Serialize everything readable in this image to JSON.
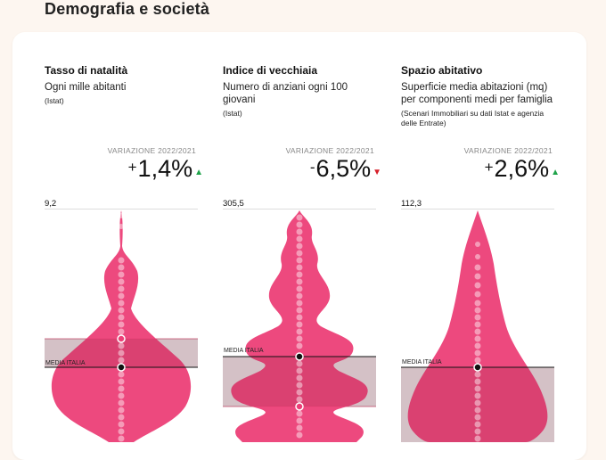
{
  "section_title": "Demografia e società",
  "colors": {
    "violin": "#ec3f77",
    "band": "#e4e4e4",
    "up_arrow": "#1fa34a",
    "down_arrow": "#d7202a"
  },
  "panels": [
    {
      "title": "Tasso di natalità",
      "subtitle": "Ogni mille abitanti",
      "source": "(Istat)",
      "variation_label": "VARIAZIONE 2022/2021",
      "variation_sign": "+",
      "variation_value": "1,4%",
      "variation_direction": "up",
      "max_value": "9,2",
      "media_label": "MEDIA ITALIA"
    },
    {
      "title": "Indice di vecchiaia",
      "subtitle": "Numero di anziani ogni 100 giovani",
      "source": "(Istat)",
      "variation_label": "VARIAZIONE 2022/2021",
      "variation_sign": "-",
      "variation_value": "6,5%",
      "variation_direction": "down",
      "max_value": "305,5",
      "media_label": "MEDIA ITALIA"
    },
    {
      "title": "Spazio abitativo",
      "subtitle": "Superficie media abitazioni (mq) per componenti medi per famiglia",
      "source": "(Scenari Immobiliari su dati Istat e agenzia delle Entrate)",
      "variation_label": "VARIAZIONE 2022/2021",
      "variation_sign": "+",
      "variation_value": "2,6%",
      "variation_direction": "up",
      "max_value": "112,3",
      "media_label": "MEDIA ITALIA"
    }
  ]
}
